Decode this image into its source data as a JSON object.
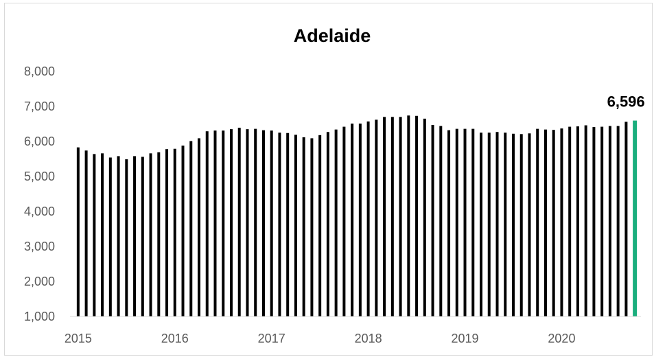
{
  "chart_data": {
    "type": "bar",
    "title": "Adelaide",
    "xlabel": "",
    "ylabel": "",
    "ylim": [
      1000,
      8000
    ],
    "yticks": [
      "1,000",
      "2,000",
      "3,000",
      "4,000",
      "5,000",
      "6,000",
      "7,000",
      "8,000"
    ],
    "ytick_values": [
      1000,
      2000,
      3000,
      4000,
      5000,
      6000,
      7000,
      8000
    ],
    "xticks": [
      "2015",
      "2016",
      "2017",
      "2018",
      "2019",
      "2020"
    ],
    "start_year": 2015,
    "grid": false,
    "legend": "none",
    "bar_color": "#000000",
    "highlight_color": "#1aae7d",
    "last_value_label": "6,596",
    "values": [
      5830,
      5740,
      5640,
      5660,
      5540,
      5580,
      5490,
      5580,
      5560,
      5660,
      5690,
      5780,
      5790,
      5880,
      6010,
      6090,
      6290,
      6310,
      6310,
      6350,
      6390,
      6350,
      6360,
      6320,
      6310,
      6250,
      6240,
      6190,
      6120,
      6090,
      6180,
      6270,
      6340,
      6420,
      6510,
      6510,
      6570,
      6620,
      6700,
      6700,
      6700,
      6740,
      6730,
      6650,
      6470,
      6440,
      6320,
      6360,
      6360,
      6360,
      6250,
      6250,
      6270,
      6250,
      6220,
      6210,
      6230,
      6360,
      6340,
      6330,
      6370,
      6420,
      6430,
      6460,
      6410,
      6420,
      6440,
      6440,
      6560,
      6596
    ]
  }
}
